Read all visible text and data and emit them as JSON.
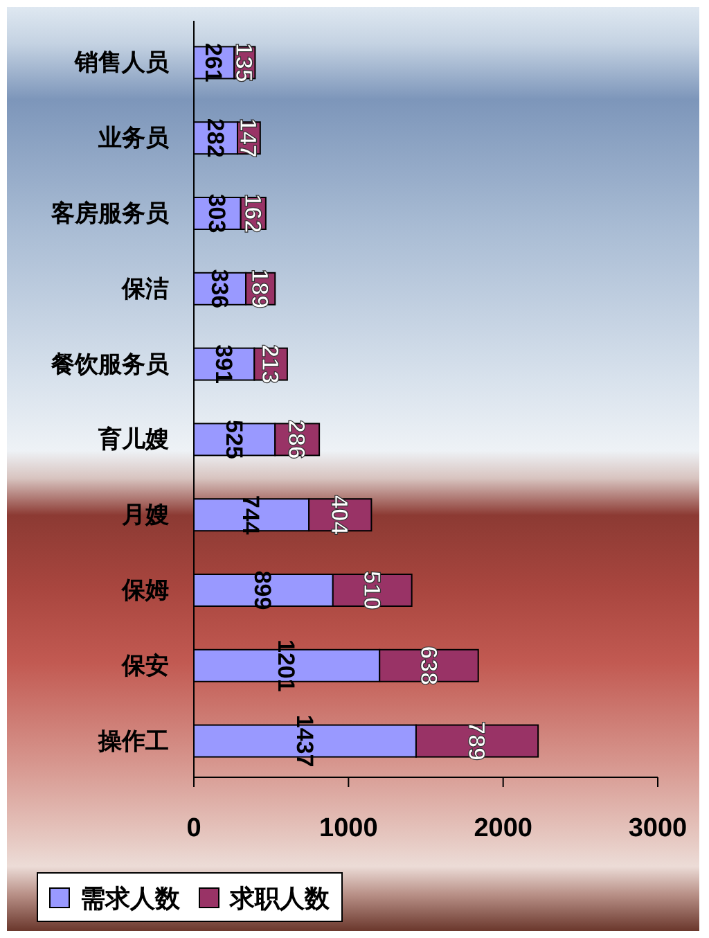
{
  "chart_data": {
    "type": "bar",
    "orientation": "horizontal",
    "stacked": true,
    "categories": [
      "销售人员",
      "业务员",
      "客房服务员",
      "保洁",
      "餐饮服务员",
      "育儿嫂",
      "月嫂",
      "保姆",
      "保安",
      "操作工"
    ],
    "series": [
      {
        "name": "需求人数",
        "color": "#9999ff",
        "values": [
          261,
          282,
          303,
          336,
          391,
          525,
          744,
          899,
          1201,
          1437
        ]
      },
      {
        "name": "求职人数",
        "color": "#993366",
        "values": [
          135,
          147,
          162,
          189,
          213,
          286,
          404,
          510,
          638,
          789
        ]
      }
    ],
    "xlim": [
      0,
      3000
    ],
    "xticks": [
      0,
      1000,
      2000,
      3000
    ],
    "data_labels": true,
    "legend": "bottom left",
    "grid": false
  }
}
